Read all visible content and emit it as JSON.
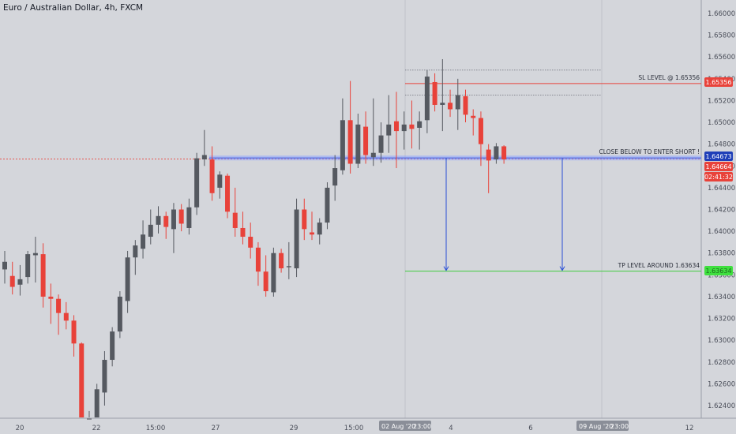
{
  "chart_title": "Euro / Australian Dollar, 4h, FXCM",
  "colors": {
    "background": "#d4d6db",
    "bull": "#555960",
    "bear": "#e8423a",
    "sl_line": "#e8423a",
    "entry_line": "#4a64e0",
    "tp_line": "#3fcc3f",
    "arrow": "#2a4fd6",
    "grid_dotted": "#7a7e88"
  },
  "annotations": {
    "sl": "SL LEVEL @ 1.65356",
    "entry": "CLOSE BELOW TO ENTER SHORT !",
    "tp": "TP LEVEL AROUND 1.63634"
  },
  "price_labels": {
    "sl": "1.65356",
    "entry": "1.64673",
    "current": "1.64664",
    "countdown": "02:41:32",
    "tp": "1.63634"
  },
  "x_tooltips": [
    "02 Aug '20",
    "23:00",
    "09 Aug '20",
    "23:00"
  ],
  "chart_data": {
    "type": "candlestick",
    "title": "Euro / Australian Dollar, 4h, FXCM",
    "y_ticks": [
      1.66,
      1.658,
      1.656,
      1.654,
      1.652,
      1.65,
      1.648,
      1.646,
      1.644,
      1.642,
      1.64,
      1.638,
      1.636,
      1.634,
      1.632,
      1.63,
      1.628,
      1.626,
      1.624
    ],
    "x_ticks": [
      "20",
      "22",
      "15:00",
      "27",
      "29",
      "15:00",
      "4",
      "6",
      "12"
    ],
    "ylim": [
      1.6226,
      1.6614
    ],
    "grid": false,
    "levels": [
      {
        "name": "SL LEVEL",
        "value": 1.65356
      },
      {
        "name": "CLOSE BELOW TO ENTER SHORT",
        "value": 1.64673
      },
      {
        "name": "TP LEVEL",
        "value": 1.63634
      },
      {
        "name": "current price",
        "value": 1.64664
      }
    ],
    "range_box": {
      "high": 1.6548,
      "low": 1.6525
    },
    "candles": [
      {
        "o": 1.6365,
        "h": 1.6382,
        "l": 1.6352,
        "c": 1.6372
      },
      {
        "o": 1.6359,
        "h": 1.6372,
        "l": 1.6342,
        "c": 1.6349
      },
      {
        "o": 1.6351,
        "h": 1.6369,
        "l": 1.6341,
        "c": 1.6356
      },
      {
        "o": 1.6358,
        "h": 1.6382,
        "l": 1.6352,
        "c": 1.6379
      },
      {
        "o": 1.6378,
        "h": 1.6395,
        "l": 1.6353,
        "c": 1.638
      },
      {
        "o": 1.6379,
        "h": 1.6389,
        "l": 1.633,
        "c": 1.634
      },
      {
        "o": 1.634,
        "h": 1.6352,
        "l": 1.6315,
        "c": 1.6338
      },
      {
        "o": 1.6338,
        "h": 1.6342,
        "l": 1.6305,
        "c": 1.6325
      },
      {
        "o": 1.6325,
        "h": 1.6335,
        "l": 1.631,
        "c": 1.6318
      },
      {
        "o": 1.6318,
        "h": 1.6323,
        "l": 1.6285,
        "c": 1.6297
      },
      {
        "o": 1.6297,
        "h": 1.6298,
        "l": 1.622,
        "c": 1.6225
      },
      {
        "o": 1.6226,
        "h": 1.6235,
        "l": 1.6212,
        "c": 1.6228
      },
      {
        "o": 1.6228,
        "h": 1.626,
        "l": 1.6215,
        "c": 1.6255
      },
      {
        "o": 1.6252,
        "h": 1.629,
        "l": 1.624,
        "c": 1.6282
      },
      {
        "o": 1.6282,
        "h": 1.6312,
        "l": 1.6276,
        "c": 1.6308
      },
      {
        "o": 1.6308,
        "h": 1.6345,
        "l": 1.6302,
        "c": 1.634
      },
      {
        "o": 1.6336,
        "h": 1.6382,
        "l": 1.6325,
        "c": 1.6376
      },
      {
        "o": 1.6376,
        "h": 1.6392,
        "l": 1.636,
        "c": 1.6387
      },
      {
        "o": 1.6384,
        "h": 1.641,
        "l": 1.6375,
        "c": 1.6397
      },
      {
        "o": 1.6395,
        "h": 1.642,
        "l": 1.6388,
        "c": 1.6406
      },
      {
        "o": 1.6406,
        "h": 1.6423,
        "l": 1.6398,
        "c": 1.6414
      },
      {
        "o": 1.6414,
        "h": 1.6418,
        "l": 1.6393,
        "c": 1.6404
      },
      {
        "o": 1.6402,
        "h": 1.6426,
        "l": 1.638,
        "c": 1.642
      },
      {
        "o": 1.642,
        "h": 1.6425,
        "l": 1.64,
        "c": 1.6407
      },
      {
        "o": 1.6403,
        "h": 1.643,
        "l": 1.6397,
        "c": 1.6422
      },
      {
        "o": 1.6422,
        "h": 1.6472,
        "l": 1.6415,
        "c": 1.6467
      },
      {
        "o": 1.6466,
        "h": 1.6493,
        "l": 1.646,
        "c": 1.647
      },
      {
        "o": 1.6466,
        "h": 1.6478,
        "l": 1.6428,
        "c": 1.6435
      },
      {
        "o": 1.644,
        "h": 1.6455,
        "l": 1.643,
        "c": 1.6452
      },
      {
        "o": 1.6451,
        "h": 1.6453,
        "l": 1.6412,
        "c": 1.6418
      },
      {
        "o": 1.6417,
        "h": 1.644,
        "l": 1.6395,
        "c": 1.6403
      },
      {
        "o": 1.6403,
        "h": 1.6418,
        "l": 1.6388,
        "c": 1.6395
      },
      {
        "o": 1.6395,
        "h": 1.6408,
        "l": 1.6375,
        "c": 1.6385
      },
      {
        "o": 1.6385,
        "h": 1.639,
        "l": 1.635,
        "c": 1.6363
      },
      {
        "o": 1.6363,
        "h": 1.6378,
        "l": 1.634,
        "c": 1.6345
      },
      {
        "o": 1.6344,
        "h": 1.6385,
        "l": 1.634,
        "c": 1.638
      },
      {
        "o": 1.638,
        "h": 1.6384,
        "l": 1.6362,
        "c": 1.6366
      },
      {
        "o": 1.6367,
        "h": 1.639,
        "l": 1.6356,
        "c": 1.6368
      },
      {
        "o": 1.6366,
        "h": 1.643,
        "l": 1.6358,
        "c": 1.642
      },
      {
        "o": 1.642,
        "h": 1.643,
        "l": 1.6392,
        "c": 1.6402
      },
      {
        "o": 1.6399,
        "h": 1.6418,
        "l": 1.6392,
        "c": 1.6397
      },
      {
        "o": 1.6397,
        "h": 1.6412,
        "l": 1.6388,
        "c": 1.6408
      },
      {
        "o": 1.6408,
        "h": 1.6445,
        "l": 1.6402,
        "c": 1.644
      },
      {
        "o": 1.6442,
        "h": 1.647,
        "l": 1.6428,
        "c": 1.6458
      },
      {
        "o": 1.6456,
        "h": 1.6522,
        "l": 1.6452,
        "c": 1.6502
      },
      {
        "o": 1.6502,
        "h": 1.6538,
        "l": 1.6453,
        "c": 1.6462
      },
      {
        "o": 1.6462,
        "h": 1.6508,
        "l": 1.6458,
        "c": 1.6498
      },
      {
        "o": 1.6496,
        "h": 1.651,
        "l": 1.6462,
        "c": 1.647
      },
      {
        "o": 1.6468,
        "h": 1.6522,
        "l": 1.646,
        "c": 1.6472
      },
      {
        "o": 1.6472,
        "h": 1.65,
        "l": 1.6463,
        "c": 1.6488
      },
      {
        "o": 1.6488,
        "h": 1.6525,
        "l": 1.6472,
        "c": 1.6498
      },
      {
        "o": 1.6501,
        "h": 1.6528,
        "l": 1.6458,
        "c": 1.6492
      },
      {
        "o": 1.6492,
        "h": 1.651,
        "l": 1.6475,
        "c": 1.6498
      },
      {
        "o": 1.6498,
        "h": 1.652,
        "l": 1.6476,
        "c": 1.6494
      },
      {
        "o": 1.6495,
        "h": 1.651,
        "l": 1.6475,
        "c": 1.6501
      },
      {
        "o": 1.6502,
        "h": 1.6548,
        "l": 1.649,
        "c": 1.6542
      },
      {
        "o": 1.6537,
        "h": 1.6545,
        "l": 1.651,
        "c": 1.6516
      },
      {
        "o": 1.6516,
        "h": 1.6558,
        "l": 1.6492,
        "c": 1.6518
      },
      {
        "o": 1.6518,
        "h": 1.653,
        "l": 1.6505,
        "c": 1.6512
      },
      {
        "o": 1.6512,
        "h": 1.654,
        "l": 1.6493,
        "c": 1.6525
      },
      {
        "o": 1.6524,
        "h": 1.653,
        "l": 1.65,
        "c": 1.6507
      },
      {
        "o": 1.6506,
        "h": 1.6512,
        "l": 1.6488,
        "c": 1.6504
      },
      {
        "o": 1.6504,
        "h": 1.651,
        "l": 1.646,
        "c": 1.648
      },
      {
        "o": 1.6475,
        "h": 1.648,
        "l": 1.6435,
        "c": 1.6465
      },
      {
        "o": 1.6466,
        "h": 1.6481,
        "l": 1.6462,
        "c": 1.6478
      },
      {
        "o": 1.6478,
        "h": 1.6479,
        "l": 1.6462,
        "c": 1.6466
      }
    ]
  }
}
